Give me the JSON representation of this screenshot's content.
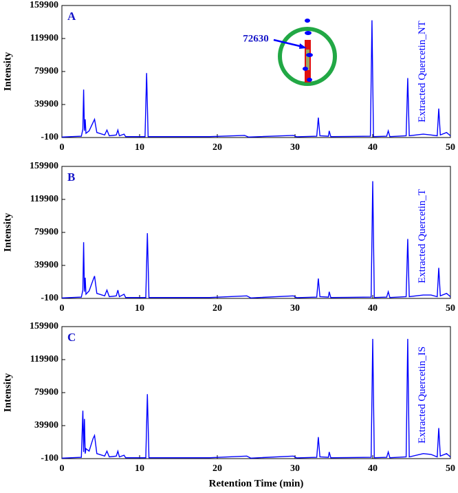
{
  "chart_data": [
    {
      "type": "line",
      "panel_label": "A",
      "y_label": "Intensity",
      "annotation": 72630,
      "xlim": [
        0,
        50
      ],
      "xticks": [
        0,
        10,
        20,
        30,
        40,
        50
      ],
      "ylim": [
        -100,
        159900
      ],
      "yticks": [
        -100,
        39900,
        79900,
        119900,
        159900
      ],
      "x": [
        0,
        2.5,
        2.7,
        2.8,
        2.9,
        3.0,
        3.1,
        3.5,
        4.0,
        4.2,
        4.5,
        5.5,
        5.8,
        6.1,
        7.0,
        7.2,
        7.4,
        8.0,
        8.2,
        10.7,
        10.9,
        11.1,
        19,
        23.5,
        24,
        29.8,
        30.2,
        32.8,
        33.0,
        33.2,
        34.3,
        34.4,
        34.6,
        39.7,
        39.9,
        40.1,
        41.8,
        42.0,
        42.2,
        44.3,
        44.5,
        44.7,
        46.5,
        47.5,
        48.3,
        48.5,
        48.7,
        49.5,
        50
      ],
      "series": [
        {
          "name": "Extracted Quercetin_NT",
          "color": "#0000ff",
          "values": [
            500,
            1500,
            10000,
            58000,
            8000,
            22000,
            5000,
            8000,
            18000,
            22000,
            6000,
            3000,
            9000,
            2000,
            3000,
            9000,
            2000,
            4000,
            1000,
            1000,
            78000,
            1000,
            1000,
            2500,
            500,
            2500,
            800,
            1500,
            24000,
            2000,
            1500,
            8000,
            1000,
            1500,
            142000,
            1000,
            1500,
            8000,
            1000,
            2000,
            72000,
            2000,
            4000,
            3000,
            2000,
            35000,
            3000,
            6000,
            2000
          ]
        }
      ]
    },
    {
      "type": "line",
      "panel_label": "B",
      "y_label": "Intensity",
      "xlim": [
        0,
        50
      ],
      "xticks": [
        0,
        10,
        20,
        30,
        40,
        50
      ],
      "ylim": [
        -100,
        159900
      ],
      "yticks": [
        -100,
        39900,
        79900,
        119900,
        159900
      ],
      "x": [
        0,
        2.5,
        2.7,
        2.8,
        2.9,
        3.0,
        3.1,
        3.5,
        4.0,
        4.2,
        4.5,
        5.5,
        5.8,
        6.1,
        7.0,
        7.2,
        7.4,
        8.0,
        8.2,
        10.8,
        11.0,
        11.2,
        19,
        23.8,
        24.3,
        29.8,
        30.2,
        32.8,
        33.0,
        33.2,
        34.3,
        34.4,
        34.6,
        39.8,
        40.0,
        40.2,
        41.8,
        42.0,
        42.2,
        44.3,
        44.5,
        44.7,
        46.5,
        47.5,
        48.3,
        48.5,
        48.7,
        49.5,
        50
      ],
      "series": [
        {
          "name": "Extracted Quercetin_T",
          "color": "#0000ff",
          "values": [
            500,
            1500,
            10000,
            68000,
            8000,
            25000,
            5000,
            9000,
            22000,
            27000,
            6000,
            3000,
            10000,
            2000,
            3000,
            10000,
            2000,
            5000,
            1000,
            1000,
            79000,
            1000,
            1000,
            3000,
            500,
            3000,
            800,
            1500,
            24000,
            2000,
            1500,
            8000,
            1000,
            1500,
            142000,
            1000,
            1500,
            8000,
            1000,
            2000,
            72000,
            2000,
            4000,
            4000,
            2000,
            37000,
            3000,
            6000,
            2000
          ]
        }
      ]
    },
    {
      "type": "line",
      "panel_label": "C",
      "y_label": "Intensity",
      "x_label": "Retention Time (min)",
      "xlim": [
        0,
        50
      ],
      "xticks": [
        0,
        10,
        20,
        30,
        40,
        50
      ],
      "ylim": [
        -100,
        159900
      ],
      "yticks": [
        -100,
        39900,
        79900,
        119900,
        159900
      ],
      "x": [
        0,
        2.5,
        2.7,
        2.8,
        2.9,
        3.0,
        3.1,
        3.5,
        4.0,
        4.2,
        4.5,
        5.5,
        5.8,
        6.1,
        7.0,
        7.2,
        7.4,
        8.0,
        8.2,
        10.8,
        11.0,
        11.2,
        19,
        23.8,
        24.3,
        29.8,
        30.2,
        32.8,
        33.0,
        33.2,
        34.3,
        34.4,
        34.6,
        39.8,
        40.0,
        40.2,
        41.8,
        42.0,
        42.2,
        44.3,
        44.5,
        44.7,
        46.5,
        47.5,
        48.3,
        48.5,
        48.7,
        49.5,
        50
      ],
      "series": [
        {
          "name": "Extracted Quercetin_IS",
          "color": "#0000ff",
          "values": [
            500,
            1500,
            58000,
            8000,
            48000,
            6000,
            12000,
            9000,
            24000,
            28000,
            6000,
            3000,
            9000,
            2000,
            3000,
            9000,
            2000,
            4000,
            1000,
            1000,
            78000,
            1000,
            1000,
            3000,
            500,
            3000,
            800,
            1500,
            26000,
            2000,
            1500,
            8000,
            1000,
            1500,
            145000,
            1000,
            1500,
            8000,
            1000,
            2000,
            145000,
            2000,
            6000,
            5000,
            2000,
            37000,
            3000,
            6000,
            2000
          ]
        }
      ]
    }
  ]
}
